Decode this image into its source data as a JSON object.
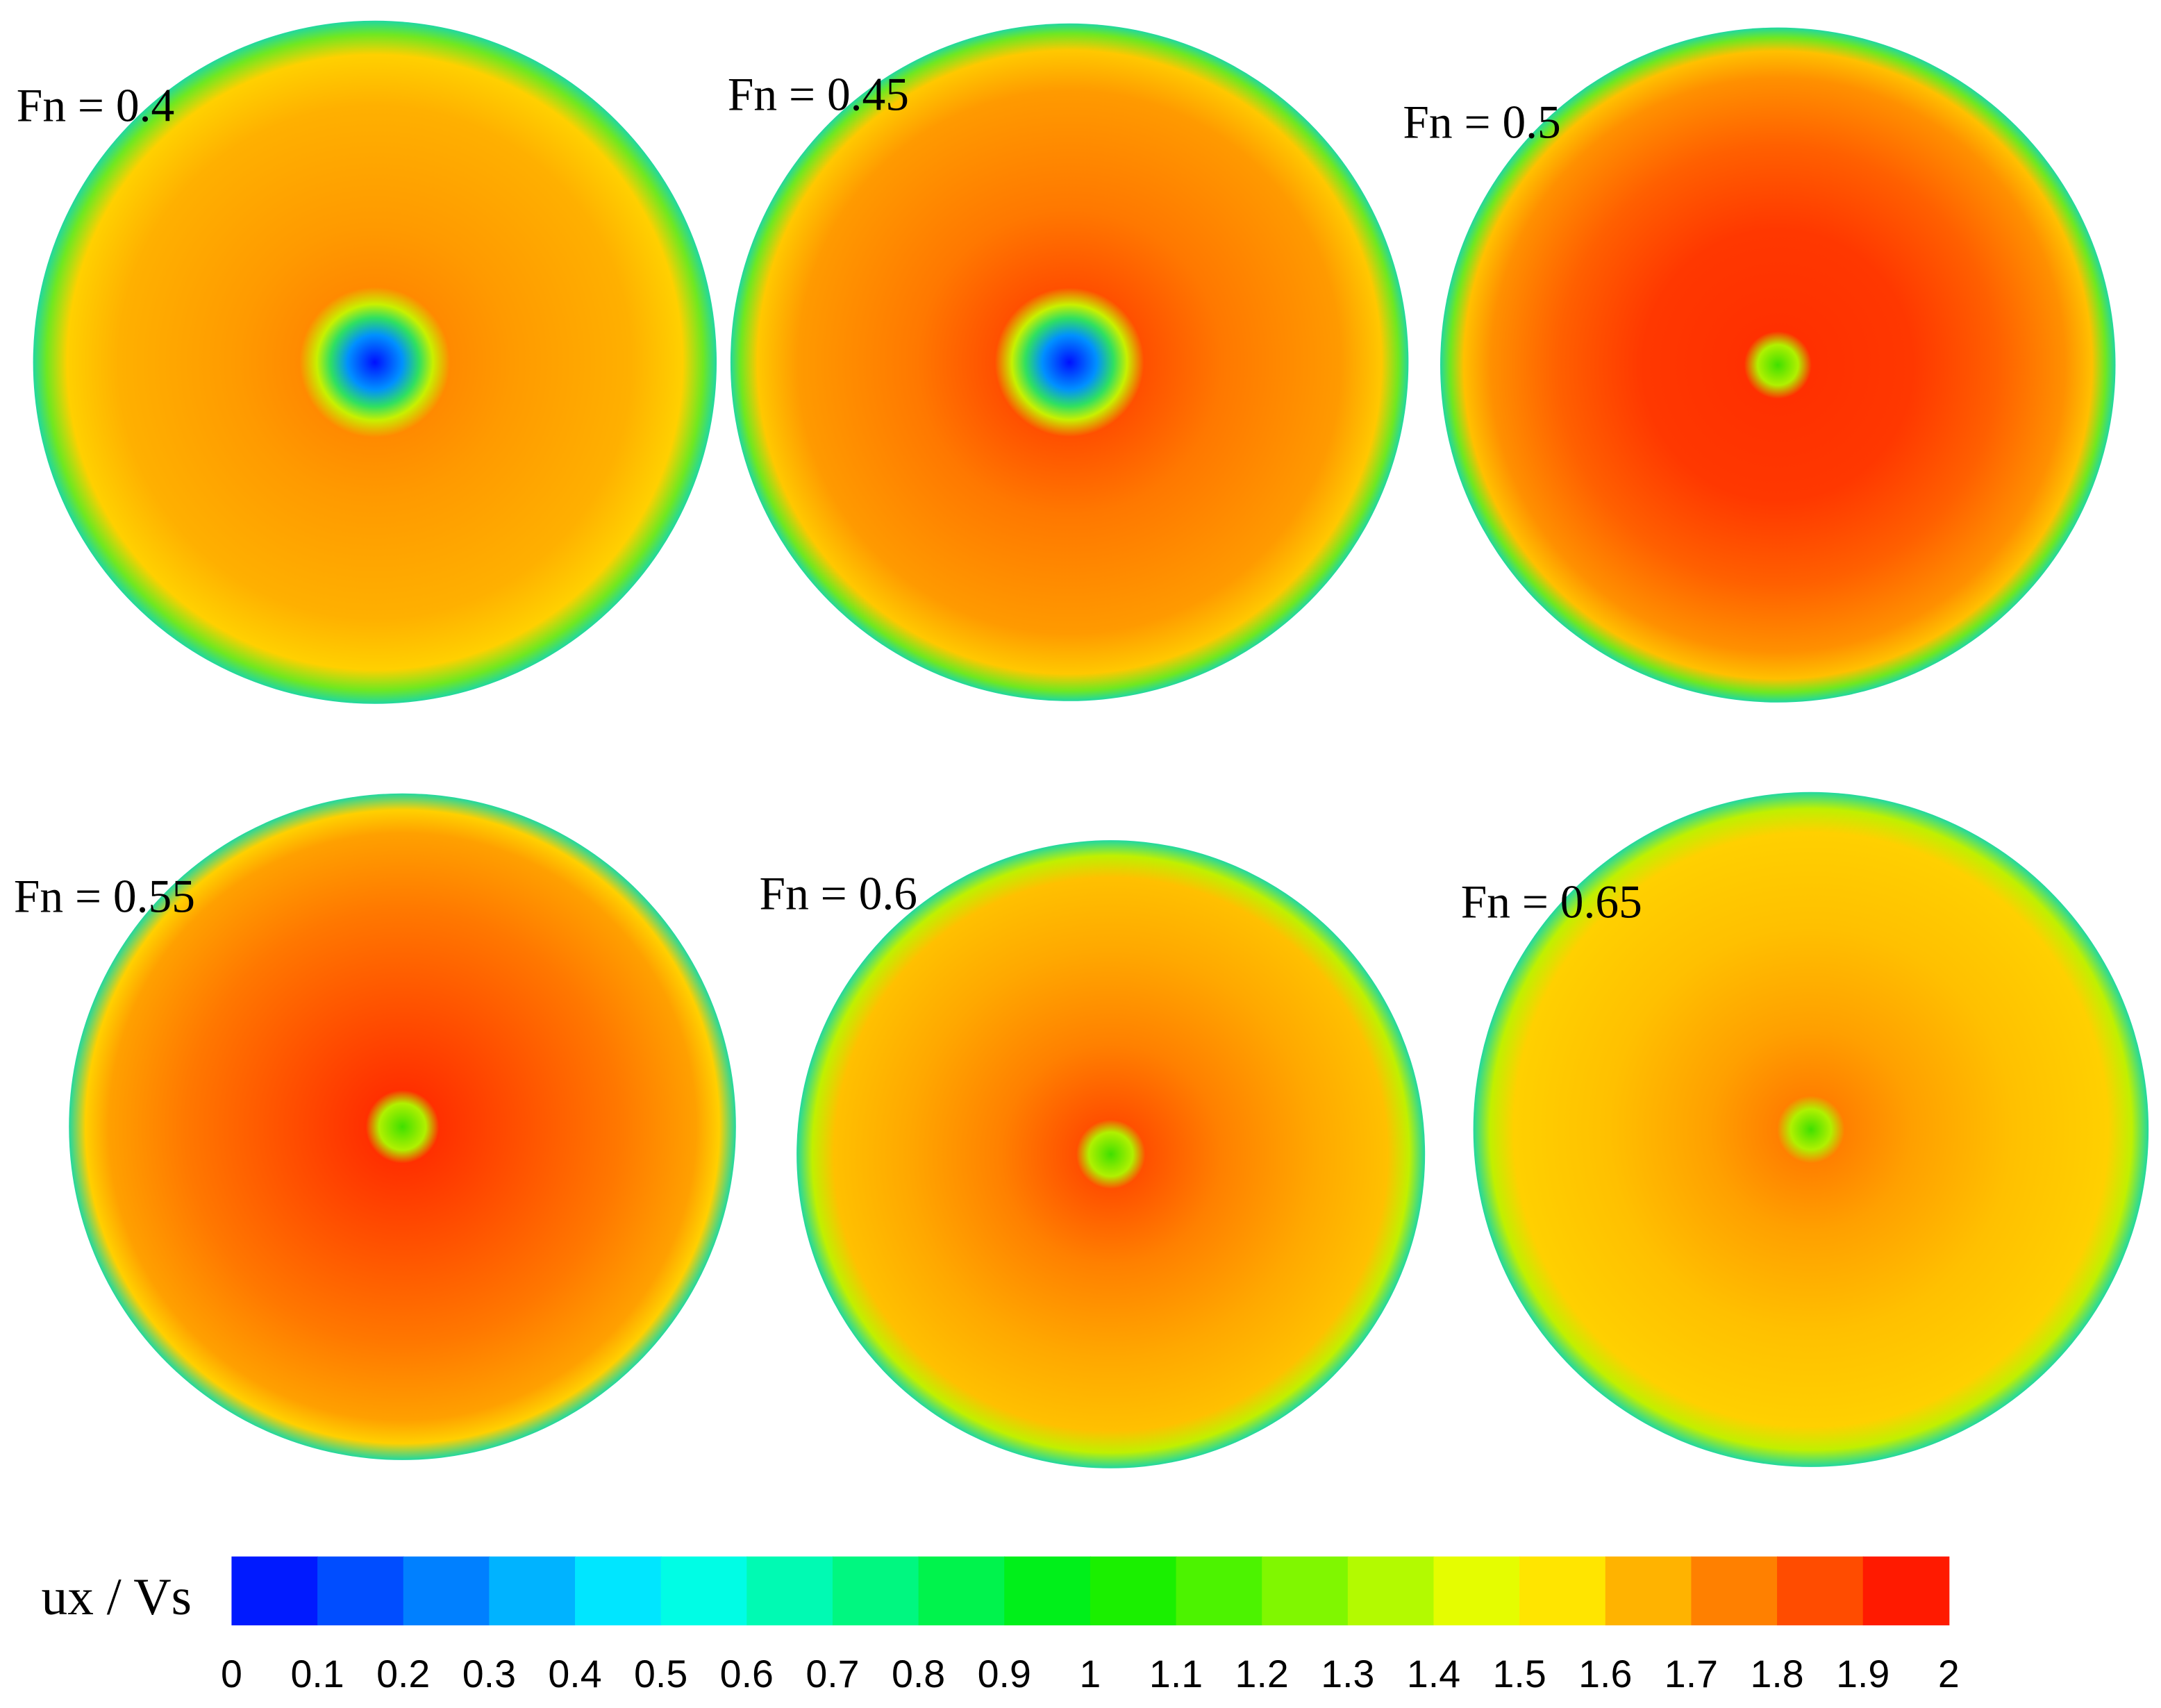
{
  "chart_data": {
    "type": "contour",
    "panels": [
      {
        "label": "Fn = 0.4"
      },
      {
        "label": "Fn = 0.45"
      },
      {
        "label": "Fn = 0.5"
      },
      {
        "label": "Fn = 0.55"
      },
      {
        "label": "Fn = 0.6"
      },
      {
        "label": "Fn = 0.65"
      }
    ],
    "colorbar": {
      "label": "ux / Vs",
      "lim": [
        0,
        2
      ],
      "ticks": [
        0,
        0.1,
        0.2,
        0.3,
        0.4,
        0.5,
        0.6,
        0.7,
        0.8,
        0.9,
        1,
        1.1,
        1.2,
        1.3,
        1.4,
        1.5,
        1.6,
        1.7,
        1.8,
        1.9,
        2
      ],
      "colormap": [
        "#0000ff",
        "#00ffff",
        "#00ee00",
        "#ffff00",
        "#ff0000"
      ]
    }
  }
}
